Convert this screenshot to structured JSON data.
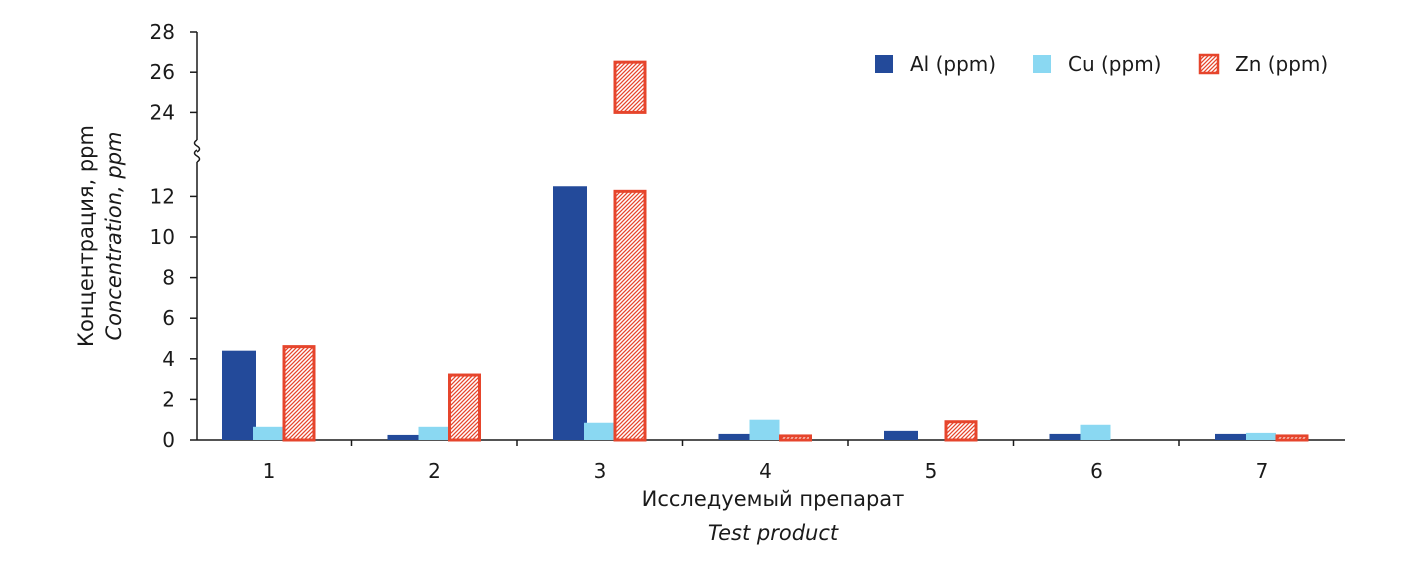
{
  "chart_data": {
    "type": "bar",
    "categories": [
      "1",
      "2",
      "3",
      "4",
      "5",
      "6",
      "7"
    ],
    "series": [
      {
        "name": "Al (ppm)",
        "values": [
          4.4,
          0.25,
          12.5,
          0.3,
          0.45,
          0.3,
          0.3
        ]
      },
      {
        "name": "Cu (ppm)",
        "values": [
          0.65,
          0.65,
          0.85,
          1.0,
          0.0,
          0.75,
          0.35
        ]
      },
      {
        "name": "Zn (ppm)",
        "values": [
          4.6,
          3.2,
          26.5,
          0.2,
          0.9,
          0.0,
          0.2
        ]
      }
    ],
    "xlabel": "Исследуемый препарат",
    "xlabel_en": "Test product",
    "ylabel": "Концентрация, ppm",
    "ylabel_en": "Concentration, ppm",
    "ylim_lower": [
      0,
      13
    ],
    "ylim_upper": [
      24,
      28
    ],
    "yticks_lower": [
      "0",
      "2",
      "4",
      "6",
      "8",
      "10",
      "12"
    ],
    "yticks_upper": [
      "24",
      "26",
      "28"
    ],
    "broken_axis": true,
    "grid": false,
    "legend_position": "top-right",
    "colors": {
      "Al (ppm)": "#234a9a",
      "Cu (ppm)": "#8ad8f2",
      "Zn (ppm)": "#e6452c",
      "en_label": "#234a9a",
      "axis": "#1a1a1a"
    },
    "patterns": {
      "Zn (ppm)": "hatched"
    }
  }
}
